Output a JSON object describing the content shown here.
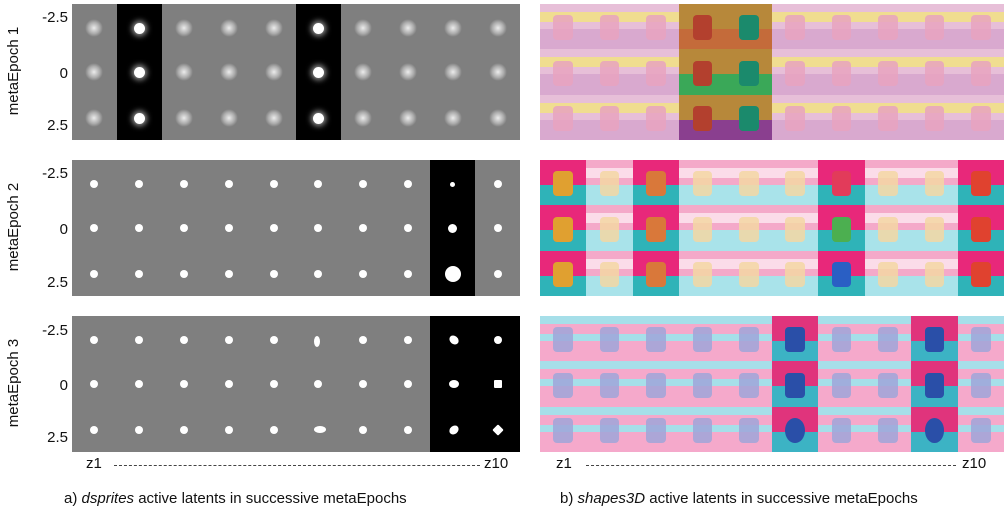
{
  "rows": [
    {
      "label": "metaEpoch 1",
      "dsprites_active": [
        2,
        6
      ],
      "shapes_active": [
        4,
        5
      ]
    },
    {
      "label": "metaEpoch 2",
      "dsprites_active": [
        9
      ],
      "shapes_active": [
        1,
        3,
        7,
        10
      ]
    },
    {
      "label": "metaEpoch 3",
      "dsprites_active": [
        9,
        10
      ],
      "shapes_active": [
        6,
        9
      ]
    }
  ],
  "y_ticks": [
    "-2.5",
    "0",
    "2.5"
  ],
  "x_start": "z1",
  "x_end": "z10",
  "caption_a": {
    "prefix": "a) ",
    "name": "dsprites",
    "rest": " active latents in successive metaEpochs"
  },
  "caption_b": {
    "prefix": "b) ",
    "name": "shapes3D",
    "rest": " active latents in successive metaEpochs"
  },
  "colors": {
    "inactive_bg": "#7f7f7f",
    "active_bg": "#000000",
    "sprite": "#ffffff"
  }
}
